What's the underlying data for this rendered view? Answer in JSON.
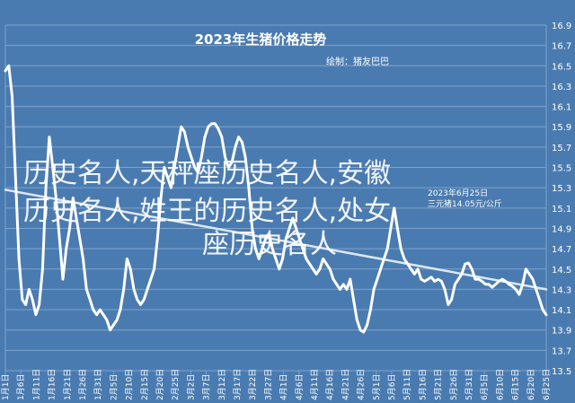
{
  "colors": {
    "background": "#4a7bb0",
    "grid": "#7ea3cc",
    "line": "#ffffff",
    "trend": "#dde8f5",
    "text": "#ffffff"
  },
  "chart_data": {
    "type": "line",
    "title": "2023年生猪价格走势",
    "subtitle": "绘制：猪友巴巴",
    "annotation": [
      "2023年6月25日",
      "三元猪14.05元/公斤"
    ],
    "xlabel": "",
    "ylabel": "",
    "ylim": [
      13.5,
      16.9
    ],
    "yticks": [
      13.5,
      13.7,
      13.9,
      14.1,
      14.3,
      14.5,
      14.7,
      14.9,
      15.1,
      15.3,
      15.5,
      15.7,
      15.9,
      16.1,
      16.3,
      16.5,
      16.7,
      16.9
    ],
    "grid": true,
    "legend": "none",
    "x_ticks": [
      "1月1日",
      "1月6日",
      "1月11日",
      "1月16日",
      "1月21日",
      "1月26日",
      "1月31日",
      "2月5日",
      "2月10日",
      "2月15日",
      "2月20日",
      "2月25日",
      "3月2日",
      "3月7日",
      "3月12日",
      "3月17日",
      "3月22日",
      "3月27日",
      "4月1日",
      "4月6日",
      "4月11日",
      "4月16日",
      "4月21日",
      "4月26日",
      "5月1日",
      "5月6日",
      "5月11日",
      "5月16日",
      "5月21日",
      "5月26日",
      "5月31日",
      "6月5日",
      "6月10日",
      "6月15日",
      "6月20日",
      "6月25日"
    ],
    "series": [
      {
        "values": [
          16.45,
          16.5,
          16.2,
          15.4,
          14.6,
          14.2,
          14.15,
          14.3,
          14.2,
          14.05,
          14.15,
          14.5,
          15.3,
          15.8,
          15.5,
          15.2,
          14.8,
          14.4,
          14.7,
          14.9,
          15.2,
          15.0,
          14.8,
          14.6,
          14.3,
          14.2,
          14.1,
          14.05,
          14.1,
          14.05,
          14.0,
          13.9,
          13.95,
          14.0,
          14.1,
          14.3,
          14.6,
          14.5,
          14.3,
          14.2,
          14.15,
          14.2,
          14.3,
          14.4,
          14.5,
          14.8,
          15.2,
          15.5,
          15.4,
          15.3,
          15.5,
          15.7,
          15.9,
          15.85,
          15.7,
          15.6,
          15.5,
          15.45,
          15.6,
          15.8,
          15.9,
          15.93,
          15.93,
          15.88,
          15.8,
          15.6,
          15.5,
          15.55,
          15.7,
          15.8,
          15.75,
          15.6,
          15.3,
          14.9,
          14.7,
          14.6,
          14.7,
          14.8,
          14.85,
          14.7,
          14.6,
          14.5,
          14.6,
          14.8,
          14.9,
          15.0,
          14.9,
          14.8,
          14.7,
          14.6,
          14.55,
          14.5,
          14.45,
          14.5,
          14.6,
          14.55,
          14.5,
          14.4,
          14.35,
          14.3,
          14.35,
          14.3,
          14.4,
          14.2,
          14.0,
          13.9,
          13.88,
          13.95,
          14.1,
          14.3,
          14.4,
          14.5,
          14.6,
          14.7,
          14.9,
          15.1,
          14.9,
          14.7,
          14.6,
          14.55,
          14.5,
          14.45,
          14.5,
          14.4,
          14.38,
          14.4,
          14.42,
          14.38,
          14.4,
          14.38,
          14.3,
          14.15,
          14.2,
          14.35,
          14.4,
          14.45,
          14.55,
          14.56,
          14.5,
          14.4,
          14.4,
          14.38,
          14.35,
          14.35,
          14.32,
          14.35,
          14.38,
          14.4,
          14.38,
          14.35,
          14.33,
          14.3,
          14.25,
          14.35,
          14.5,
          14.45,
          14.4,
          14.3,
          14.2,
          14.1,
          14.05
        ]
      }
    ],
    "trend": {
      "start": 15.28,
      "end": 14.3
    }
  },
  "watermark": [
    "历史名人,天秤座历史名人,安徽",
    "历史名人,姓王的历史名人,处女",
    "座历史名人"
  ]
}
